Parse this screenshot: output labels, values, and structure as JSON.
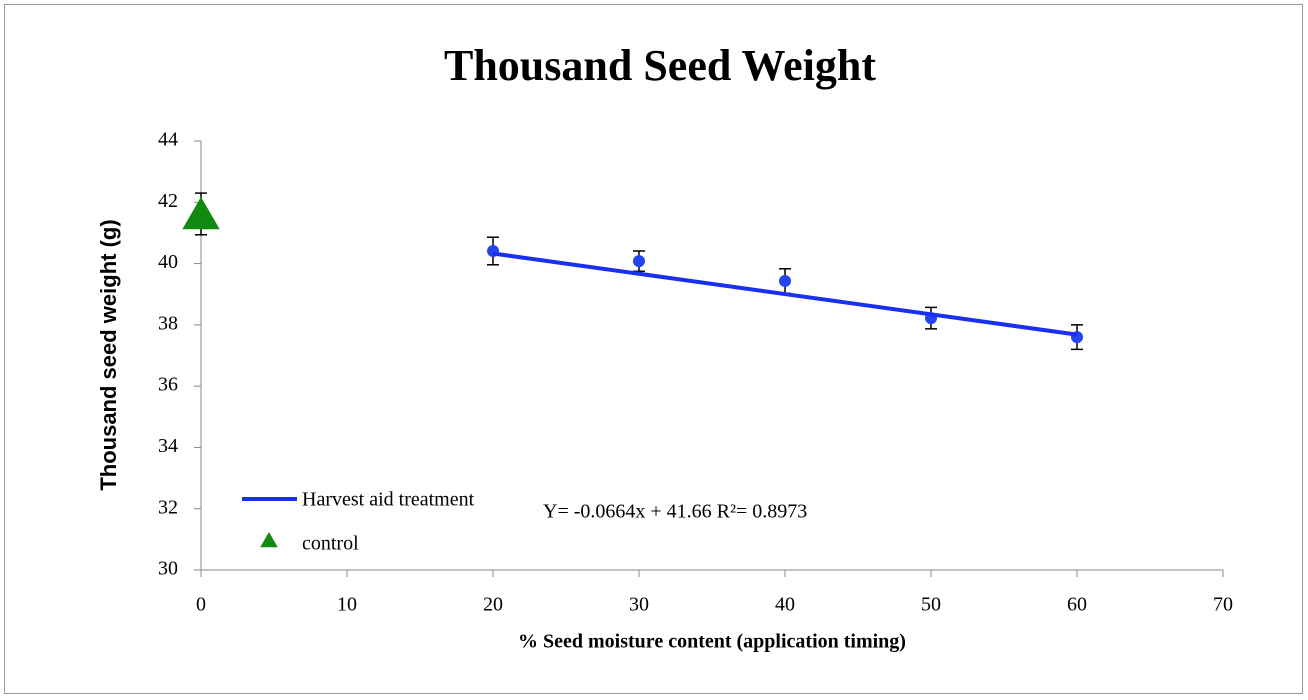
{
  "chart_data": {
    "type": "scatter",
    "title": "Thousand Seed Weight",
    "xlabel": "% Seed moisture content (application timing)",
    "ylabel": "Thousand seed weight (g)",
    "xlim": [
      0,
      70
    ],
    "xticks": [
      0,
      10,
      20,
      30,
      40,
      50,
      60,
      70
    ],
    "ylim": [
      30,
      44
    ],
    "yticks": [
      30,
      32,
      34,
      36,
      38,
      40,
      42,
      44
    ],
    "annotation": "Y= -0.0664x + 41.66  R²= 0.8973",
    "legend": "lower left",
    "points": {
      "color": "#2444f0",
      "x": [
        20,
        30,
        40,
        50,
        60
      ],
      "values": [
        40.41,
        40.08,
        39.43,
        38.22,
        37.6
      ],
      "errors": [
        0.45,
        0.33,
        0.4,
        0.35,
        0.4
      ]
    },
    "series": [
      {
        "name": "Harvest aid treatment",
        "color": "#1a30f0",
        "kind": "line",
        "x": [
          20,
          60
        ],
        "values": [
          40.33,
          37.68
        ]
      },
      {
        "name": "control",
        "color": "#128a12",
        "kind": "triangle",
        "x": [
          0
        ],
        "values": [
          41.62
        ],
        "errors": [
          0.68
        ]
      }
    ]
  }
}
